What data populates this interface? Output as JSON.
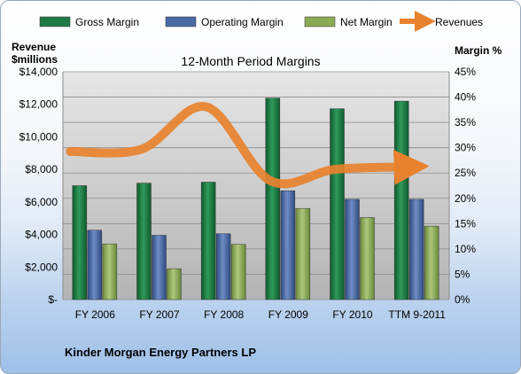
{
  "chart_data": {
    "type": "bar",
    "title": "12-Month Period Margins",
    "ylabel_left": [
      "Revenue",
      "$millions"
    ],
    "ylabel_right": "Margin %",
    "categories": [
      "FY 2006",
      "FY 2007",
      "FY 2008",
      "FY 2009",
      "FY 2010",
      "TTM 9-2011"
    ],
    "left_ticks": [
      "$-",
      "$2,000",
      "$4,000",
      "$6,000",
      "$8,000",
      "$10,000",
      "$12,000",
      "$14,000"
    ],
    "right_ticks": [
      "0%",
      "5%",
      "10%",
      "15%",
      "20%",
      "25%",
      "30%",
      "35%",
      "40%",
      "45%"
    ],
    "ylim_right": [
      0,
      45
    ],
    "ylim_left": [
      0,
      14000
    ],
    "grid": true,
    "legend_position": "top",
    "series": [
      {
        "name": "Gross Margin",
        "kind": "bar",
        "axis": "right",
        "color": "#1f7a45",
        "values": [
          22.5,
          23.0,
          23.2,
          39.8,
          37.7,
          39.2
        ]
      },
      {
        "name": "Operating Margin",
        "kind": "bar",
        "axis": "right",
        "color": "#4a6aa6",
        "values": [
          13.7,
          12.7,
          13.0,
          21.5,
          19.8,
          19.8
        ]
      },
      {
        "name": "Net Margin",
        "kind": "bar",
        "axis": "right",
        "color": "#8aab55",
        "values": [
          11.0,
          6.1,
          10.9,
          18.0,
          16.2,
          14.5
        ]
      },
      {
        "name": "Revenues",
        "kind": "line",
        "axis": "left",
        "color": "#e8822e",
        "values": [
          9100,
          9250,
          11850,
          7300,
          8000,
          8150
        ]
      }
    ]
  },
  "footer": {
    "company": "Kinder Morgan Energy Partners LP"
  }
}
